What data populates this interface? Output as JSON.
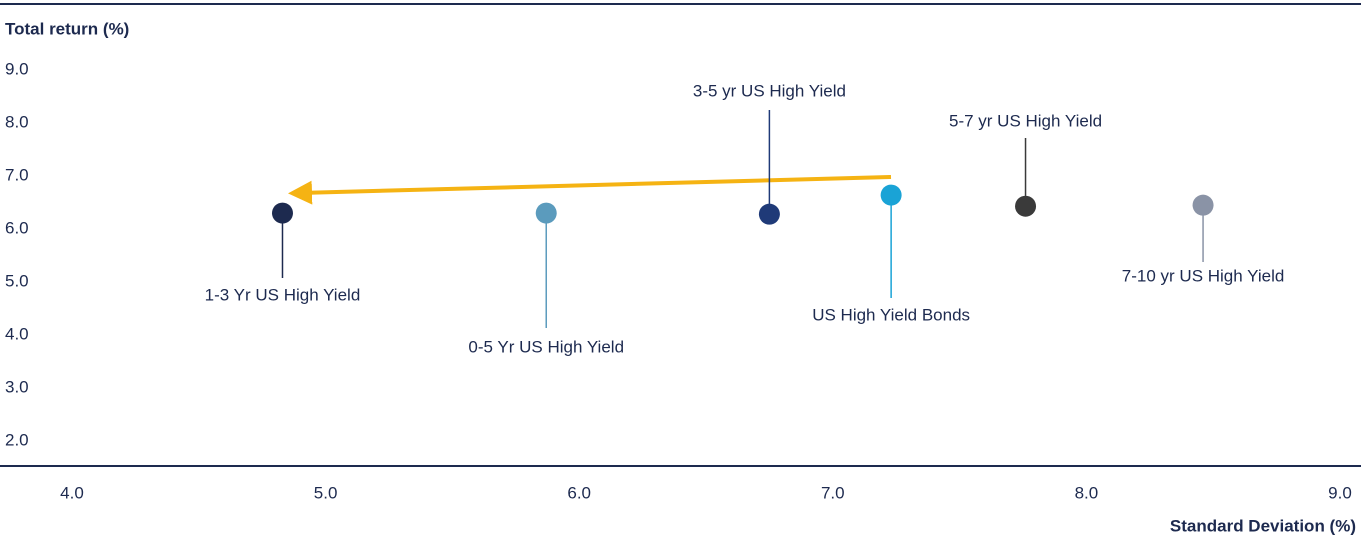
{
  "chart_data": {
    "type": "scatter",
    "y_label": "Total return (%)",
    "x_label": "Standard Deviation (%)",
    "xlim": [
      4,
      9
    ],
    "ylim": [
      1.5,
      9.5
    ],
    "xticks": [
      {
        "value": 4,
        "label": "4.0"
      },
      {
        "value": 5,
        "label": "5.0"
      },
      {
        "value": 6,
        "label": "6.0"
      },
      {
        "value": 7,
        "label": "7.0"
      },
      {
        "value": 8,
        "label": "8.0"
      },
      {
        "value": 9,
        "label": "9.0"
      }
    ],
    "yticks": [
      {
        "value": 2,
        "label": "2.0"
      },
      {
        "value": 3,
        "label": "3.0"
      },
      {
        "value": 4,
        "label": "4.0"
      },
      {
        "value": 5,
        "label": "5.0"
      },
      {
        "value": 6,
        "label": "6.0"
      },
      {
        "value": 7,
        "label": "7.0"
      },
      {
        "value": 8,
        "label": "8.0"
      },
      {
        "value": 9,
        "label": "9.0"
      }
    ],
    "points": [
      {
        "label": "1-3 Yr US High Yield",
        "x": 4.83,
        "y": 6.3,
        "color": "#1d2a4f"
      },
      {
        "label": "0-5 Yr US High Yield",
        "x": 5.87,
        "y": 6.3,
        "color": "#5b9bbd"
      },
      {
        "label": "3-5 yr US High Yield",
        "x": 6.75,
        "y": 6.28,
        "color": "#1f3a78"
      },
      {
        "label": "US High Yield Bonds",
        "x": 7.23,
        "y": 6.64,
        "color": "#1aa3d6"
      },
      {
        "label": "5-7 yr US High Yield",
        "x": 7.76,
        "y": 6.43,
        "color": "#3a3a3a"
      },
      {
        "label": "7-10 yr US High Yield",
        "x": 8.46,
        "y": 6.45,
        "color": "#8a93a6"
      }
    ]
  }
}
